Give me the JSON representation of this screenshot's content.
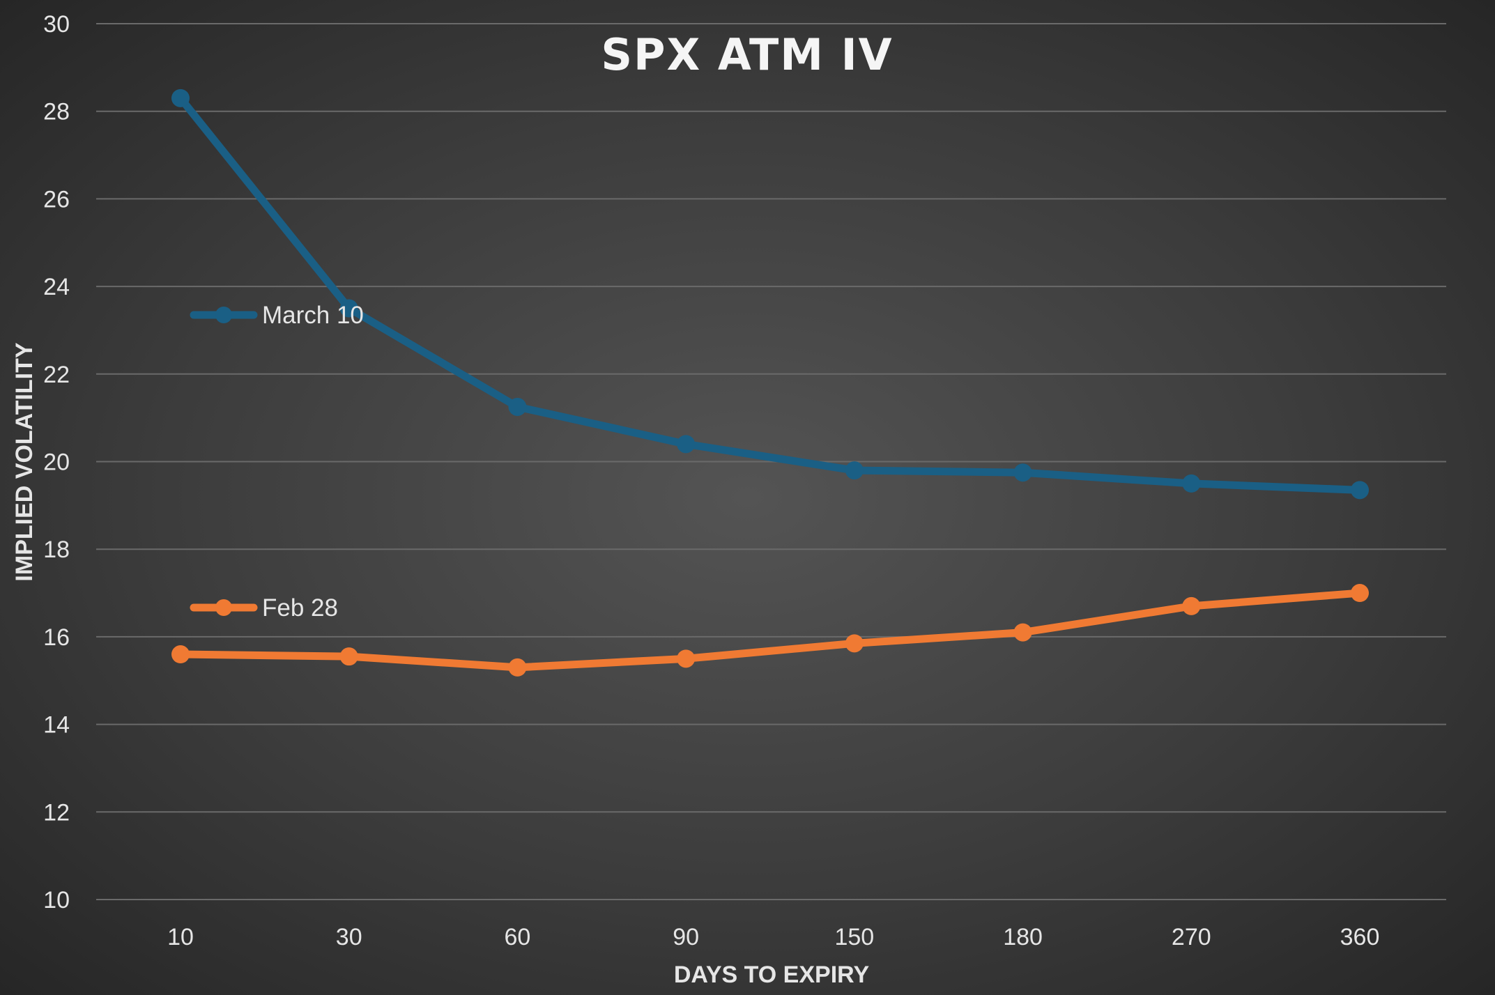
{
  "chart_data": {
    "type": "line",
    "title": "SPX ATM IV",
    "xlabel": "DAYS TO EXPIRY",
    "ylabel": "IMPLIED VOLATILITY",
    "categories": [
      "10",
      "30",
      "60",
      "90",
      "150",
      "180",
      "270",
      "360"
    ],
    "yticks": [
      "10",
      "12",
      "14",
      "16",
      "18",
      "20",
      "22",
      "24",
      "26",
      "28",
      "30"
    ],
    "ylim": [
      10,
      30
    ],
    "grid": true,
    "legend_placement": "inline-left",
    "series": [
      {
        "name": "March 10",
        "color": "#1a5f85",
        "values": [
          28.3,
          23.5,
          21.25,
          20.4,
          19.8,
          19.75,
          19.5,
          19.35
        ]
      },
      {
        "name": "Feb 28",
        "color": "#f07a33",
        "values": [
          15.6,
          15.55,
          15.3,
          15.5,
          15.85,
          16.1,
          16.7,
          17.0
        ]
      }
    ]
  }
}
